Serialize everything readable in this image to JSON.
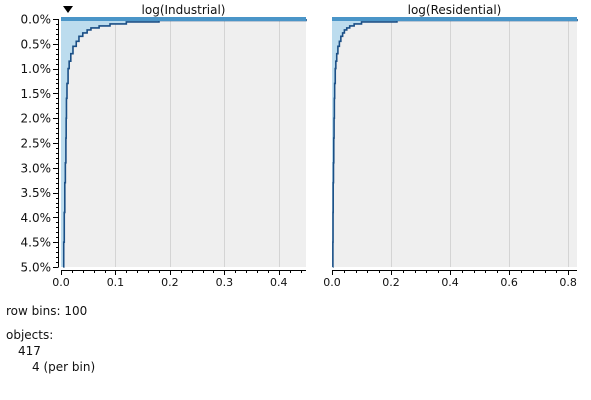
{
  "chart_data": {
    "type": "area",
    "y_axis": {
      "range": [
        0.0,
        5.0
      ],
      "ticks": [
        "0.0%",
        "0.5%",
        "1.0%",
        "1.5%",
        "2.0%",
        "2.5%",
        "3.0%",
        "3.5%",
        "4.0%",
        "4.5%",
        "5.0%"
      ],
      "sort_indicator": "descending"
    },
    "panels": [
      {
        "title": "log(Industrial)",
        "xlim": [
          0,
          0.45
        ],
        "x_ticks": [
          0.0,
          0.1,
          0.2,
          0.3,
          0.4
        ],
        "x_tick_labels": [
          "0.0",
          "0.1",
          "0.2",
          "0.3",
          "0.4"
        ],
        "grid": true,
        "profile": {
          "pct": [
            0.0,
            0.03,
            0.06,
            0.1,
            0.14,
            0.18,
            0.22,
            0.28,
            0.35,
            0.45,
            0.55,
            0.7,
            0.85,
            1.0,
            1.3,
            1.6,
            2.0,
            2.4,
            2.9,
            3.3,
            3.9,
            4.5,
            5.0
          ],
          "value": [
            0.45,
            0.18,
            0.12,
            0.09,
            0.07,
            0.055,
            0.048,
            0.04,
            0.033,
            0.028,
            0.022,
            0.018,
            0.015,
            0.013,
            0.011,
            0.01,
            0.0095,
            0.009,
            0.008,
            0.007,
            0.006,
            0.005,
            0.004
          ]
        },
        "top_bar_max": 0.45
      },
      {
        "title": "log(Residential)",
        "xlim": [
          0,
          0.83
        ],
        "x_ticks": [
          0.0,
          0.2,
          0.4,
          0.6,
          0.8
        ],
        "x_tick_labels": [
          "0.0",
          "0.2",
          "0.4",
          "0.6",
          "0.8"
        ],
        "grid": true,
        "profile": {
          "pct": [
            0.0,
            0.03,
            0.06,
            0.1,
            0.14,
            0.18,
            0.22,
            0.28,
            0.35,
            0.45,
            0.55,
            0.7,
            0.85,
            1.0,
            1.3,
            1.6,
            2.0,
            2.4,
            2.9,
            3.3,
            3.9,
            4.5,
            5.0
          ],
          "value": [
            0.83,
            0.22,
            0.1,
            0.075,
            0.06,
            0.05,
            0.042,
            0.036,
            0.03,
            0.025,
            0.02,
            0.016,
            0.013,
            0.011,
            0.009,
            0.008,
            0.007,
            0.006,
            0.005,
            0.004,
            0.0035,
            0.003,
            0.0025
          ]
        },
        "top_bar_max": 0.83
      }
    ],
    "colors": {
      "fill": "#bcdcee",
      "line": "#1a4f86",
      "top_bar": "#4a95c8",
      "grid": "#d4d4d4",
      "plot_bg": "#efefef"
    }
  },
  "info": {
    "row_bins_label": "row bins:",
    "row_bins_value": "100",
    "objects_label": "objects:",
    "objects_count": "417",
    "per_bin_value": "4",
    "per_bin_label": "(per bin)"
  }
}
